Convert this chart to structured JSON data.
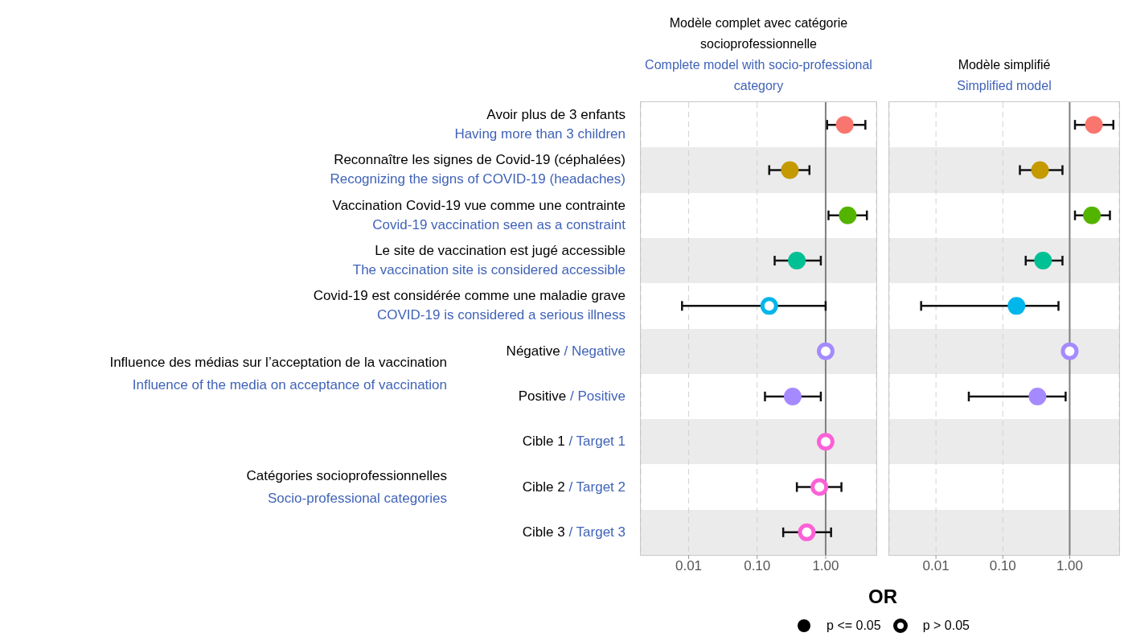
{
  "chart_data": [
    {
      "type": "scatter",
      "orientation": "horizontal",
      "title": "Modèle complet avec catégorie socioprofessionnelle",
      "subtitle": "Complete model with socio-professional category",
      "xlabel": "OR",
      "categories": [
        "Avoir plus de 3 enfants\nHaving more than 3 children",
        "Reconnaître les signes de Covid-19 (céphalées)\nRecognizing the signs of COVID-19 (headaches)",
        "Vaccination Covid-19 vue comme une contrainte\nCovid-19 vaccination seen as a constraint",
        "Le site de vaccination est jugé accessible\nThe vaccination site is considered accessible",
        "Covid-19 est considérée comme une maladie grave\nCOVID-19 is considered a serious illness",
        "Négative / Negative",
        "Positive / Positive",
        "Cible 1 / Target 1",
        "Cible 2 / Target 2",
        "Cible 3 / Target 3"
      ],
      "annotations": [
        "Influence des médias sur l’acceptation de la vaccination\nInfluence of the media on acceptance of vaccination",
        "Catégories socioprofessionnelles\nSocio-professional categories"
      ],
      "log": "x",
      "xlim": [
        0.002,
        5.5
      ],
      "xticks": [
        {
          "value": 0.01,
          "label": "0.01"
        },
        {
          "value": 0.1,
          "label": "0.10"
        },
        {
          "value": 1,
          "label": "1.00"
        }
      ],
      "grid": "x",
      "ref_lines": [
        {
          "axis": "x",
          "value": 1,
          "color": "#7f7f7f"
        }
      ],
      "legend": "bottom",
      "marker": "circle",
      "series": [
        {
          "name": "p <= 0.05",
          "colors": [
            "#f8766d",
            "#c49a00",
            "#53b400",
            "#00c094",
            "#00b6eb",
            "#a58aff",
            "#a58aff",
            "#fb61d7",
            "#fb61d7",
            "#fb61d7"
          ],
          "values": [
            1.9,
            0.3,
            2.1,
            0.38,
            null,
            null,
            0.33,
            null,
            null,
            null
          ],
          "errors": [
            [
              1.05,
              3.8
            ],
            [
              0.15,
              0.58
            ],
            [
              1.1,
              4.0
            ],
            [
              0.18,
              0.85
            ],
            null,
            null,
            [
              0.13,
              0.85
            ],
            null,
            null,
            null
          ]
        },
        {
          "name": "p > 0.05",
          "color": "#ffffff",
          "colors": [
            "#f8766d",
            "#c49a00",
            "#53b400",
            "#00c094",
            "#00b6eb",
            "#a58aff",
            "#a58aff",
            "#fb61d7",
            "#fb61d7",
            "#fb61d7"
          ],
          "values": [
            null,
            null,
            null,
            null,
            0.15,
            1.0,
            null,
            1.0,
            0.81,
            0.53
          ],
          "errors": [
            null,
            null,
            null,
            null,
            [
              0.008,
              1.0
            ],
            null,
            null,
            null,
            [
              0.38,
              1.7
            ],
            [
              0.24,
              1.2
            ]
          ]
        }
      ]
    },
    {
      "type": "scatter",
      "orientation": "horizontal",
      "title": "Modèle simplifié",
      "subtitle": "Simplified model",
      "categories": [
        null,
        null,
        null,
        null,
        null,
        null,
        null,
        null,
        null,
        null
      ],
      "tick_labels": "x",
      "log": "x",
      "xlim": [
        0.002,
        5.5
      ],
      "xticks": [
        {
          "value": 0.01,
          "label": "0.01"
        },
        {
          "value": 0.1,
          "label": "0.10"
        },
        {
          "value": 1,
          "label": "1.00"
        }
      ],
      "grid": "x",
      "ref_lines": [
        {
          "axis": "x",
          "value": 1,
          "color": "#7f7f7f"
        }
      ],
      "marker": "circle",
      "series": [
        {
          "colors": [
            "#f8766d",
            "#c49a00",
            "#53b400",
            "#00c094",
            "#00b6eb",
            "#a58aff",
            "#a58aff",
            "#fb61d7",
            "#fb61d7",
            "#fb61d7"
          ],
          "values": [
            2.3,
            0.36,
            2.15,
            0.4,
            0.16,
            null,
            0.33,
            null,
            null,
            null
          ],
          "errors": [
            [
              1.2,
              4.5
            ],
            [
              0.18,
              0.78
            ],
            [
              1.2,
              4.0
            ],
            [
              0.22,
              0.78
            ],
            [
              0.006,
              0.68
            ],
            null,
            [
              0.031,
              0.87
            ],
            null,
            null,
            null
          ]
        },
        {
          "color": "#ffffff",
          "colors": [
            "#f8766d",
            "#c49a00",
            "#53b400",
            "#00c094",
            "#00b6eb",
            "#a58aff",
            "#a58aff",
            "#fb61d7",
            "#fb61d7",
            "#fb61d7"
          ],
          "values": [
            null,
            null,
            null,
            null,
            null,
            1.0,
            null,
            null,
            null,
            null
          ],
          "errors": [
            null,
            null,
            null,
            null,
            null,
            null,
            null,
            null,
            null,
            null
          ]
        }
      ]
    }
  ]
}
